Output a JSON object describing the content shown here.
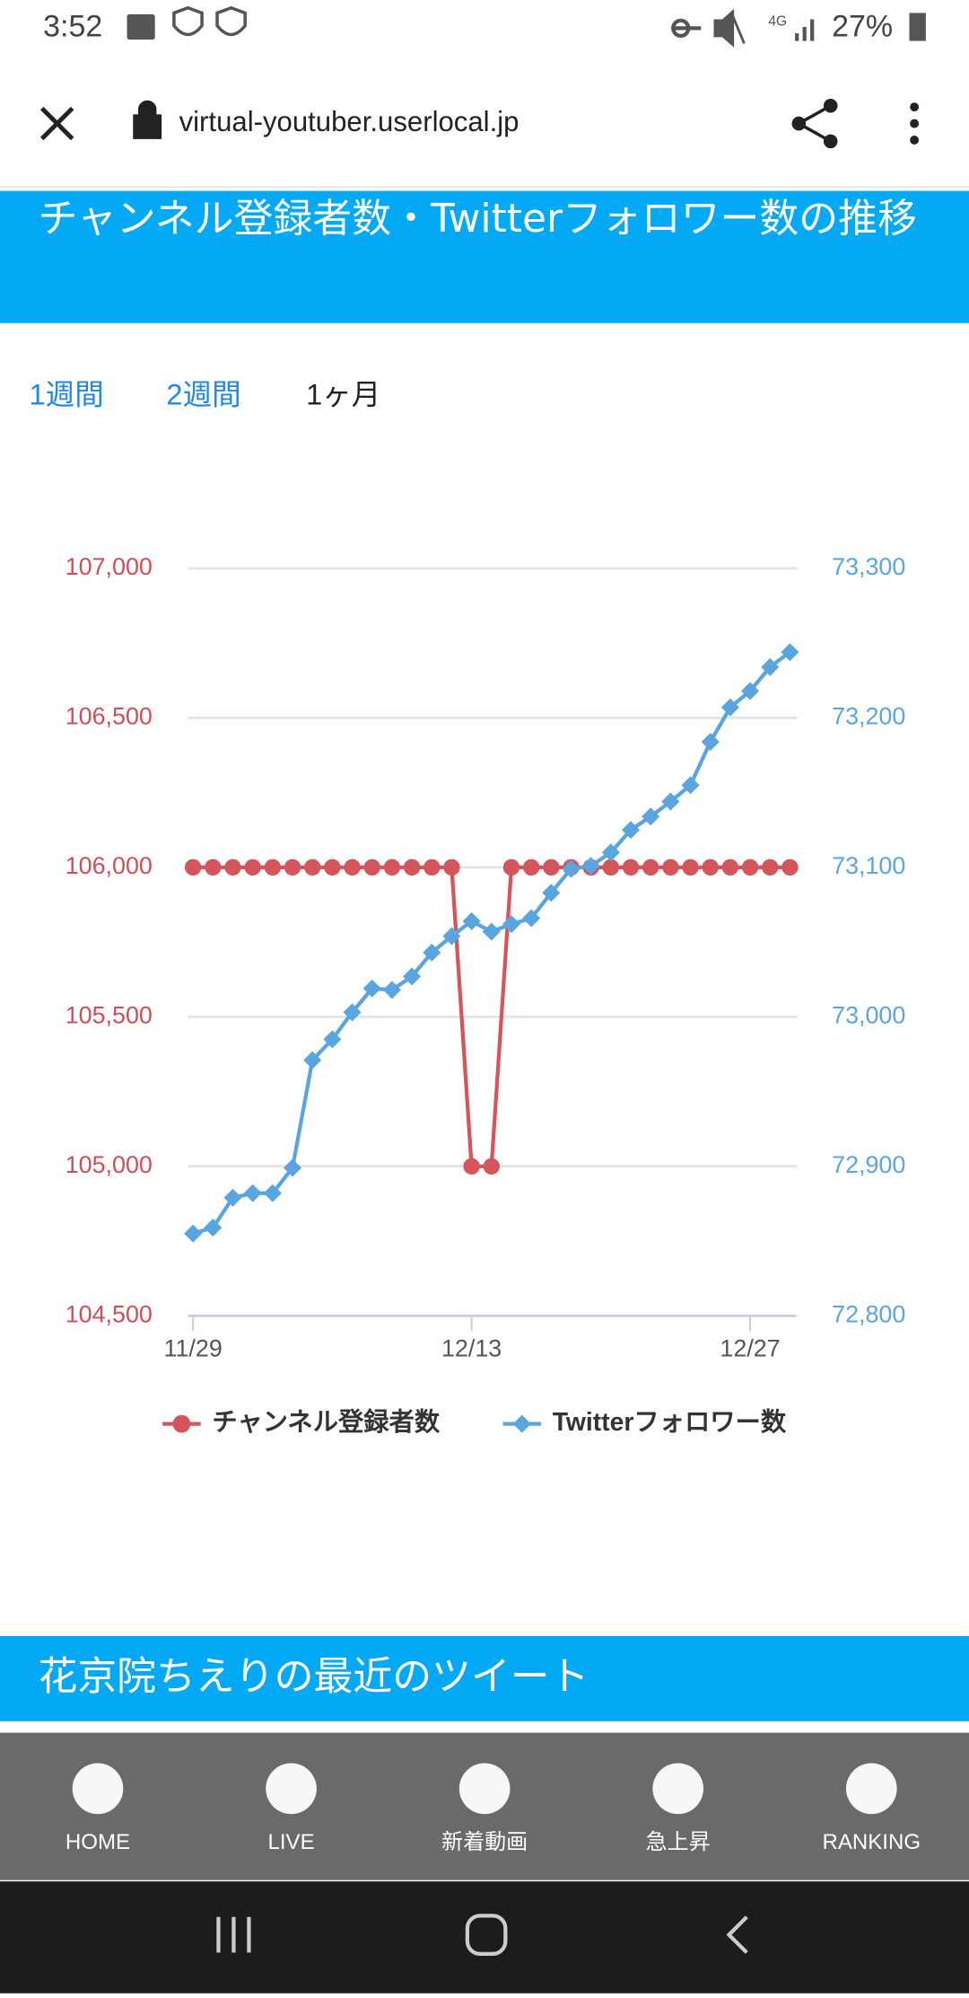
{
  "status_bar": {
    "time": "3:52",
    "network": "4G",
    "battery": "27%"
  },
  "browser": {
    "url": "virtual-youtuber.userlocal.jp"
  },
  "section": {
    "title": "チャンネル登録者数・Twitterフォロワー数の推移",
    "tabs": [
      "1週間",
      "2週間",
      "1ヶ月"
    ]
  },
  "chart_data": {
    "type": "line",
    "categories": [
      "11/29",
      null,
      null,
      null,
      null,
      null,
      null,
      null,
      null,
      null,
      null,
      null,
      null,
      null,
      "12/13",
      null,
      null,
      null,
      null,
      null,
      null,
      null,
      null,
      null,
      null,
      null,
      null,
      null,
      "12/27",
      null,
      null
    ],
    "series": [
      {
        "name": "チャンネル登録者数",
        "color": "#d6545c",
        "values": [
          106000,
          106000,
          106000,
          106000,
          106000,
          106000,
          106000,
          106000,
          106000,
          106000,
          106000,
          106000,
          106000,
          106000,
          105000,
          105000,
          106000,
          106000,
          106000,
          106000,
          106000,
          106000,
          106000,
          106000,
          106000,
          106000,
          106000,
          106000,
          106000,
          106000,
          106000
        ]
      },
      {
        "name": "Twitterフォロワー数",
        "color": "#5aa5e0",
        "axis": "y2",
        "values": [
          72855,
          72859,
          72879,
          72882,
          72882,
          72899,
          72971,
          72985,
          73003,
          73019,
          73018,
          73027,
          73043,
          73054,
          73064,
          73057,
          73062,
          73066,
          73083,
          73099,
          73101,
          73110,
          73125,
          73134,
          73144,
          73155,
          73184,
          73207,
          73218,
          73234,
          73244
        ]
      }
    ],
    "ylim": [
      104500,
      107000
    ],
    "yticks": [
      {
        "value": 104500,
        "label": "104,500"
      },
      {
        "value": 105000,
        "label": "105,000"
      },
      {
        "value": 105500,
        "label": "105,500"
      },
      {
        "value": 106000,
        "label": "106,000"
      },
      {
        "value": 106500,
        "label": "106,500"
      },
      {
        "value": 107000,
        "label": "107,000"
      }
    ],
    "y2lim": [
      72800,
      73300
    ],
    "y2ticks": [
      {
        "value": 72800,
        "label": "72,800"
      },
      {
        "value": 72900,
        "label": "72,900"
      },
      {
        "value": 73000,
        "label": "73,000"
      },
      {
        "value": 73100,
        "label": "73,100"
      },
      {
        "value": 73200,
        "label": "73,200"
      },
      {
        "value": 73300,
        "label": "73,300"
      }
    ],
    "grid": true,
    "legend": "bottom"
  },
  "tweets": {
    "title": "花京院ちえりの最近のツイート"
  },
  "nav": [
    "HOME",
    "LIVE",
    "新着動画",
    "急上昇",
    "RANKING"
  ]
}
